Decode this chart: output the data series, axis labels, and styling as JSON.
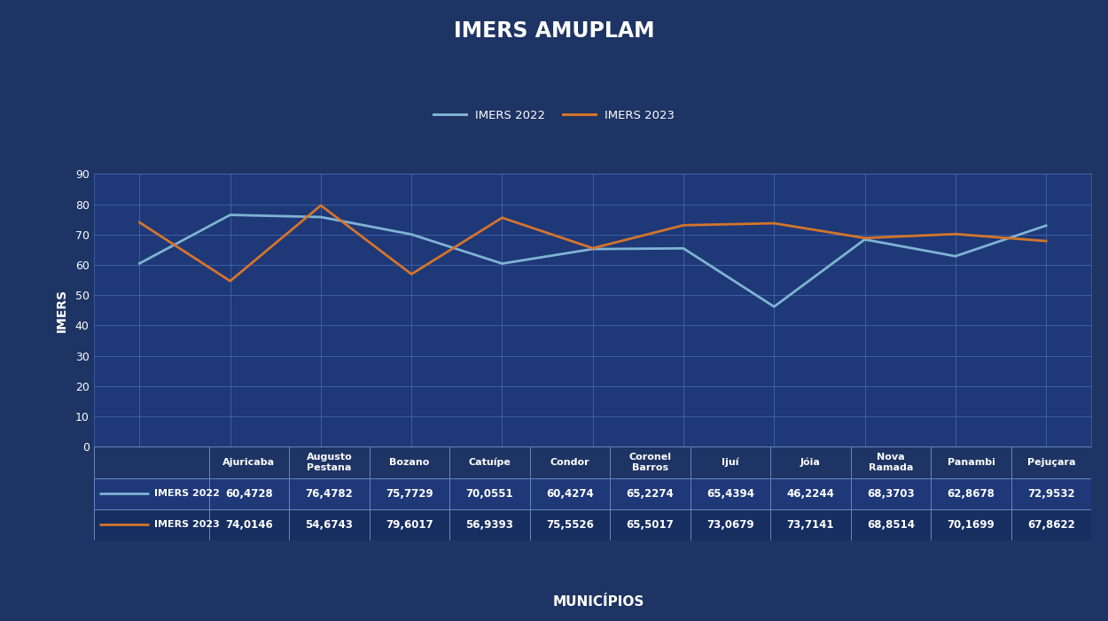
{
  "title": "IMERS AMUPLAM",
  "xlabel": "MUNICÍPIOS",
  "ylabel": "IMERS",
  "bg_color": "#1e3464",
  "plot_bg_color": "#1e3878",
  "grid_color": "#4466aa",
  "text_color": "#ffffff",
  "categories": [
    "Ajuricaba",
    "Augusto\nPestana",
    "Bozano",
    "Catuípe",
    "Condor",
    "Coronel\nBarros",
    "Ijuí",
    "Jóia",
    "Nova\nRamada",
    "Panambi",
    "Pejuçara"
  ],
  "imers2022": [
    60.4728,
    76.4782,
    75.7729,
    70.0551,
    60.4274,
    65.2274,
    65.4394,
    46.2244,
    68.3703,
    62.8678,
    72.9532
  ],
  "imers2023": [
    74.0146,
    54.6743,
    79.6017,
    56.9393,
    75.5526,
    65.5017,
    73.0679,
    73.7141,
    68.8514,
    70.1699,
    67.8622
  ],
  "imers2022_str": [
    "60,4728",
    "76,4782",
    "75,7729",
    "70,0551",
    "60,4274",
    "65,2274",
    "65,4394",
    "46,2244",
    "68,3703",
    "62,8678",
    "72,9532"
  ],
  "imers2023_str": [
    "74,0146",
    "54,6743",
    "79,6017",
    "56,9393",
    "75,5526",
    "65,5017",
    "73,0679",
    "73,7141",
    "68,8514",
    "70,1699",
    "67,8622"
  ],
  "color_2022": "#7fb3d3",
  "color_2023": "#d4752a",
  "ylim": [
    0,
    90
  ],
  "yticks": [
    0,
    10,
    20,
    30,
    40,
    50,
    60,
    70,
    80,
    90
  ],
  "legend_label_2022": "IMERS 2022",
  "legend_label_2023": "IMERS 2023",
  "table_border_color": "#6688bb",
  "table_row1_bg": "#1e3878",
  "table_row2_bg": "#162e60"
}
